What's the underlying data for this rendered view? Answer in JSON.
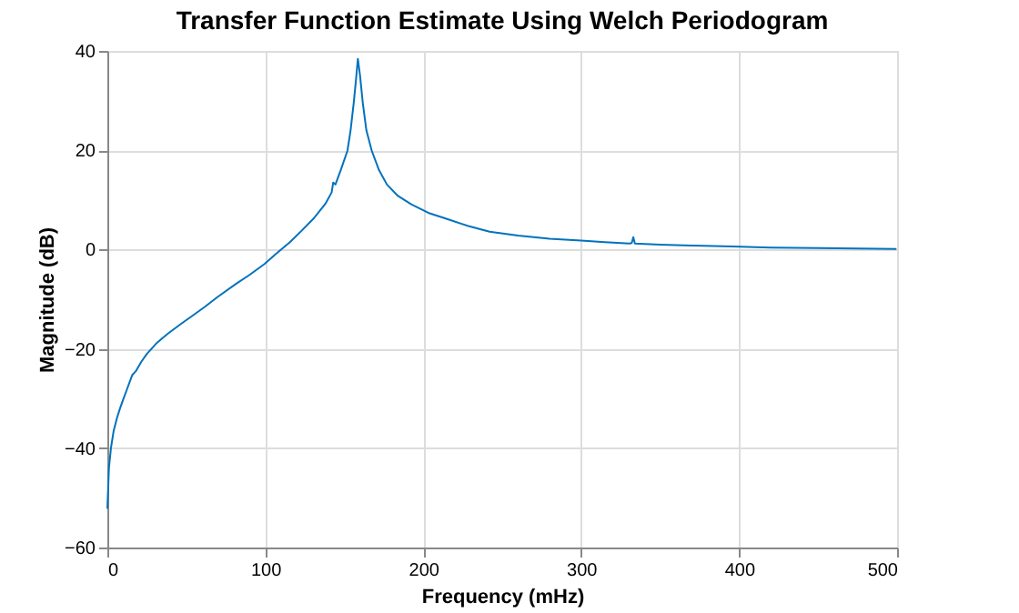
{
  "chart_data": {
    "type": "line",
    "title": "Transfer Function Estimate Using Welch Periodogram",
    "xlabel": "Frequency (mHz)",
    "ylabel": "Magnitude (dB)",
    "series": [
      {
        "color": "#0072bd",
        "x": [
          0,
          1,
          2.3,
          4,
          6.1,
          8,
          10,
          12,
          15.7,
          18,
          21.5,
          25,
          31,
          38,
          46.5,
          54,
          61.8,
          70,
          81,
          90,
          99.5,
          107,
          115.6,
          123,
          131,
          138,
          142,
          143,
          144.4,
          148,
          152,
          154,
          156,
          157.5,
          158.6,
          160,
          161.7,
          164,
          167.4,
          172,
          177,
          184,
          192.4,
          204,
          214.6,
          228,
          242,
          260,
          280,
          300,
          315,
          330.6,
          332,
          333,
          334,
          350,
          370,
          396,
          420,
          450,
          475,
          499.6
        ],
        "values": [
          -52.2,
          -44,
          -39.9,
          -36.5,
          -33.9,
          -32,
          -30.2,
          -28.5,
          -25.3,
          -24.5,
          -22.6,
          -21,
          -18.9,
          -17,
          -15,
          -13.3,
          -11.5,
          -9.5,
          -7,
          -5.1,
          -2.9,
          -0.8,
          1.5,
          3.8,
          6.4,
          9.2,
          11.5,
          13.5,
          13.1,
          16.2,
          19.9,
          24,
          29.6,
          34.5,
          38.4,
          35,
          29.6,
          24,
          19.9,
          16,
          13.1,
          10.8,
          9.1,
          7.3,
          6.2,
          4.8,
          3.6,
          2.8,
          2.2,
          1.8,
          1.5,
          1.2,
          1.3,
          2.5,
          1.2,
          1,
          0.8,
          0.6,
          0.4,
          0.3,
          0.2,
          0.1
        ]
      }
    ],
    "xlim": [
      0,
      500
    ],
    "xticks": [
      0,
      100,
      200,
      300,
      400,
      500
    ],
    "ylim": [
      -60,
      40
    ],
    "yticks": [
      -60,
      -40,
      -20,
      0,
      20,
      40
    ],
    "grid": true
  }
}
